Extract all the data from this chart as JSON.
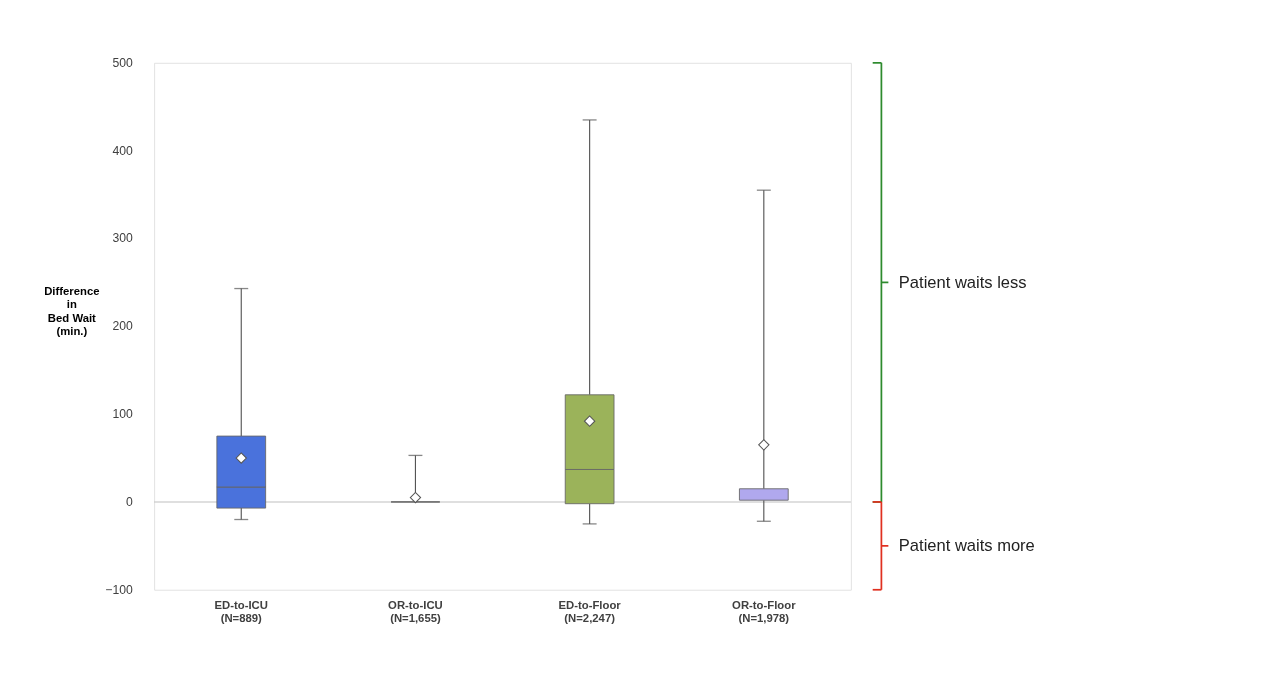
{
  "chart_data": {
    "type": "box",
    "categories": [
      "ED-to-ICU\n(N=889)",
      "OR-to-ICU\n(N=1,655)",
      "ED-to-Floor\n(N=2,247)",
      "OR-to-Floor\n(N=1,978)"
    ],
    "colors": [
      "#4a72dc",
      "#555555",
      "#9bb35a",
      "#b0a8ee"
    ],
    "boxes": [
      {
        "low": -20,
        "q1": -7,
        "median": 17,
        "q3": 75,
        "high": 243,
        "mean": 50
      },
      {
        "low": 0,
        "q1": 0,
        "median": 0,
        "q3": 0,
        "high": 53,
        "mean": 5
      },
      {
        "low": -25,
        "q1": -2,
        "median": 37,
        "q3": 122,
        "high": 435,
        "mean": 92
      },
      {
        "low": -22,
        "q1": 2,
        "median": 2,
        "q3": 15,
        "high": 355,
        "mean": 65
      }
    ],
    "ylabel": "Difference\nin\nBed Wait\n(min.)",
    "ylim": [
      -100,
      500
    ],
    "yticks": [
      -100,
      0,
      100,
      200,
      300,
      400,
      500
    ],
    "grid": false,
    "ref_lines": [
      {
        "axis": "y",
        "value": 0,
        "color": "#bfbfbf"
      }
    ],
    "annotations": [
      "Patient waits less",
      "Patient waits more"
    ]
  }
}
